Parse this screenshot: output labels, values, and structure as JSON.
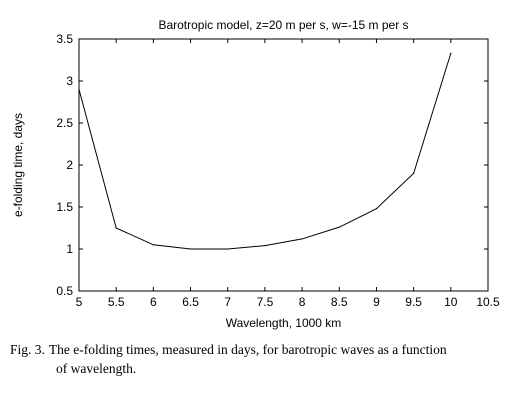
{
  "chart_data": {
    "type": "line",
    "title": "Barotropic model, z=20 m per s, w=-15 m per s",
    "xlabel": "Wavelength, 1000 km",
    "ylabel": "e-folding time, days",
    "xlim": [
      5,
      10.5
    ],
    "ylim": [
      0.5,
      3.5
    ],
    "xticks": [
      "5",
      "5.5",
      "6",
      "6.5",
      "7",
      "7.5",
      "8",
      "8.5",
      "9",
      "9.5",
      "10",
      "10.5"
    ],
    "yticks": [
      "0.5",
      "1",
      "1.5",
      "2",
      "2.5",
      "3",
      "3.5"
    ],
    "grid": false,
    "x": [
      5.0,
      5.5,
      6.0,
      6.5,
      7.0,
      7.5,
      8.0,
      8.5,
      9.0,
      9.5,
      10.0
    ],
    "series": [
      {
        "values": [
          2.9,
          1.25,
          1.05,
          1.0,
          1.0,
          1.04,
          1.12,
          1.26,
          1.48,
          1.9,
          3.33
        ]
      }
    ],
    "color": "#000000"
  },
  "caption": {
    "label": "Fig. 3.",
    "line1": "The e-folding times, measured in days, for barotropic waves as a function",
    "line2": "of wavelength."
  }
}
